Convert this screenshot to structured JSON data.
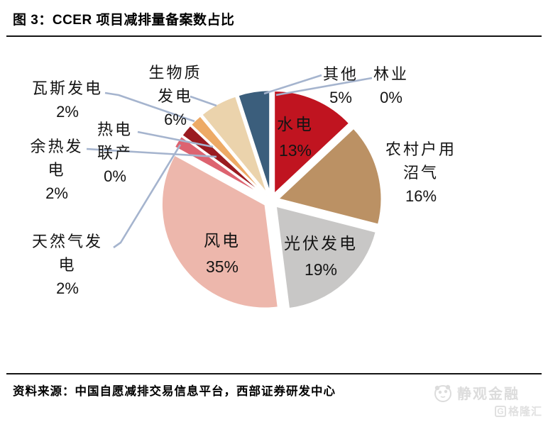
{
  "header": {
    "figure_title": "图 3：CCER 项目减排量备案数占比"
  },
  "chart_data": {
    "type": "pie",
    "title": "CCER 项目减排量备案数占比",
    "unit": "%",
    "clockwise_from_top": true,
    "exploded": true,
    "legend_position": "none (direct labels with leader lines)",
    "slices": [
      {
        "name": "水电",
        "value": 13,
        "pct": "13%",
        "color": "#C01420",
        "label_placement": "inside"
      },
      {
        "name": "农村户用沼气",
        "value": 16,
        "pct": "16%",
        "color": "#BB9164",
        "label_placement": "outside-right"
      },
      {
        "name": "光伏发电",
        "value": 19,
        "pct": "19%",
        "color": "#C8C7C6",
        "label_placement": "inside"
      },
      {
        "name": "风电",
        "value": 35,
        "pct": "35%",
        "color": "#EDB7AC",
        "label_placement": "inside"
      },
      {
        "name": "天然气发电",
        "value": 2,
        "pct": "2%",
        "color": "#DD6370",
        "label_placement": "outside-left"
      },
      {
        "name": "余热发电",
        "value": 2,
        "pct": "2%",
        "color": "#9A1B20",
        "label_placement": "outside-left"
      },
      {
        "name": "热电联产",
        "value": 0,
        "pct": "0%",
        "color": "#B0B0B0",
        "label_placement": "outside-left"
      },
      {
        "name": "瓦斯发电",
        "value": 2,
        "pct": "2%",
        "color": "#EDAA66",
        "label_placement": "outside-left"
      },
      {
        "name": "生物质发电",
        "value": 6,
        "pct": "6%",
        "color": "#EBD3AC",
        "label_placement": "outside-top"
      },
      {
        "name": "其他",
        "value": 5,
        "pct": "5%",
        "color": "#3B5E7C",
        "label_placement": "outside-top"
      },
      {
        "name": "林业",
        "value": 0,
        "pct": "0%",
        "color": "#999999",
        "label_placement": "outside-top"
      }
    ],
    "leader_line_color": "#A5B4CE"
  },
  "footer": {
    "source": "资料来源：中国自愿减排交易信息平台，西部证券研发中心",
    "watermark": {
      "brand": "静观金融",
      "platform": "格隆汇",
      "g_letter": "G"
    }
  }
}
